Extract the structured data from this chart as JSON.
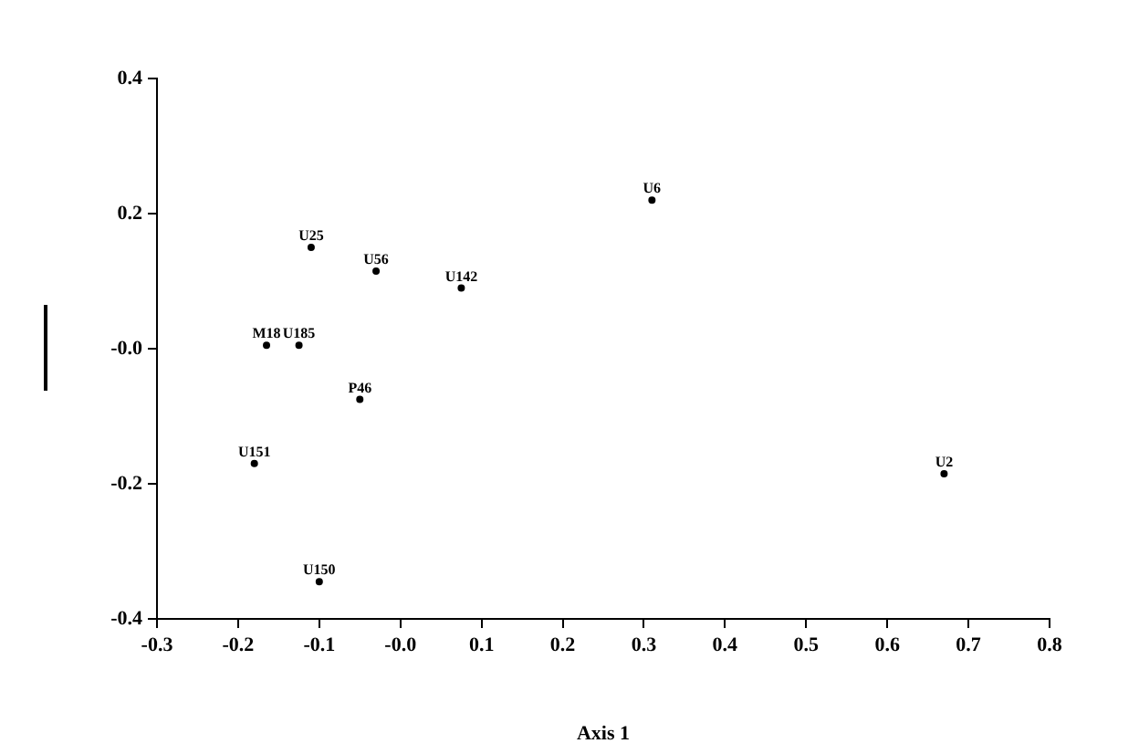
{
  "chart_data": {
    "type": "scatter",
    "xlabel": "Axis 1",
    "grid": false,
    "legend": false,
    "marker": "circle",
    "series": [
      {
        "color": "#000000",
        "x": [
          0.31,
          -0.11,
          -0.03,
          0.075,
          -0.165,
          -0.125,
          -0.05,
          -0.18,
          0.67,
          -0.1
        ],
        "values": [
          0.22,
          0.15,
          0.115,
          0.09,
          0.005,
          0.005,
          -0.075,
          -0.17,
          -0.185,
          -0.345
        ],
        "value_labels": [
          "U6",
          "U25",
          "U56",
          "U142",
          "M18",
          "U185",
          "P46",
          "U151",
          "U2",
          "U150"
        ]
      }
    ],
    "xlim": [
      -0.3,
      0.8
    ],
    "xticks": [
      {
        "value": -0.3,
        "label": "-0.3"
      },
      {
        "value": -0.2,
        "label": "-0.2"
      },
      {
        "value": -0.1,
        "label": "-0.1"
      },
      {
        "value": 0,
        "label": "-0.0"
      },
      0.1,
      0.2,
      0.3,
      0.4,
      0.5,
      0.6,
      0.7,
      0.8
    ],
    "ylim": [
      -0.4,
      0.4
    ],
    "yticks": [
      {
        "value": -0.4,
        "label": "-0.4"
      },
      {
        "value": -0.2,
        "label": "-0.2"
      },
      {
        "value": 0,
        "label": "-0.0"
      },
      0.2,
      0.4
    ]
  }
}
